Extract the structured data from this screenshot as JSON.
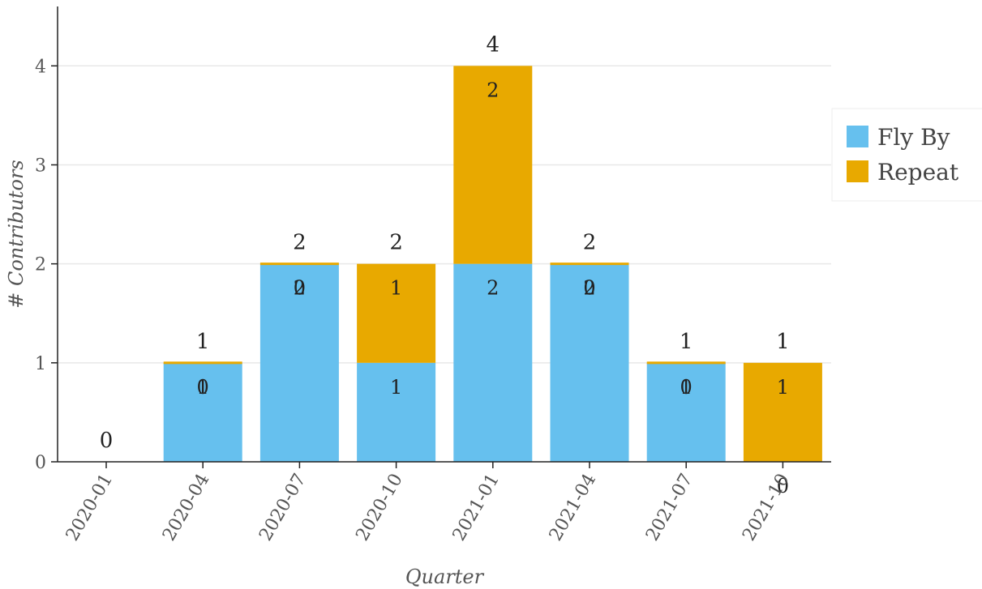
{
  "chart_data": {
    "type": "bar",
    "stacked": true,
    "title": "",
    "xlabel": "Quarter",
    "ylabel": "# Contributors",
    "categories": [
      "2020-01",
      "2020-04",
      "2020-07",
      "2020-10",
      "2021-01",
      "2021-04",
      "2021-07",
      "2021-10"
    ],
    "series": [
      {
        "name": "Fly By",
        "color": "#66c0ee",
        "values": [
          0,
          1,
          2,
          1,
          2,
          2,
          1,
          0
        ]
      },
      {
        "name": "Repeat",
        "color": "#e8a900",
        "values": [
          0,
          0,
          0,
          1,
          2,
          0,
          0,
          1
        ]
      }
    ],
    "totals": [
      0,
      1,
      2,
      2,
      4,
      2,
      1,
      1
    ],
    "ylim": [
      0,
      4.6
    ],
    "yticks": [
      0,
      1,
      2,
      3,
      4
    ],
    "grid": "horizontal",
    "legend_position": "right"
  }
}
